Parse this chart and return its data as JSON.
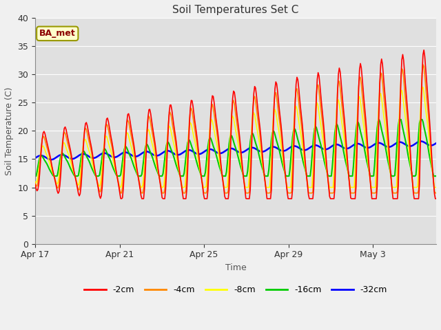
{
  "title": "Soil Temperatures Set C",
  "xlabel": "Time",
  "ylabel": "Soil Temperature (C)",
  "ylim": [
    0,
    40
  ],
  "yticks": [
    0,
    5,
    10,
    15,
    20,
    25,
    30,
    35,
    40
  ],
  "colors": {
    "-2cm": "#ff0000",
    "-4cm": "#ff8800",
    "-8cm": "#ffff00",
    "-16cm": "#00cc00",
    "-32cm": "#0000ff"
  },
  "legend_labels": [
    "-2cm",
    "-4cm",
    "-8cm",
    "-16cm",
    "-32cm"
  ],
  "annotation_text": "BA_met",
  "annotation_fg": "#8b0000",
  "annotation_bg": "#ffffcc",
  "annotation_edge": "#999900",
  "fig_bg": "#f0f0f0",
  "plot_bg": "#e0e0e0",
  "grid_color": "#ffffff",
  "x_tick_labels": [
    "Apr 17",
    "Apr 21",
    "Apr 25",
    "Apr 29",
    "May 3"
  ],
  "x_tick_positions": [
    0,
    4,
    8,
    12,
    16
  ],
  "n_days": 19,
  "pts_per_day": 24
}
